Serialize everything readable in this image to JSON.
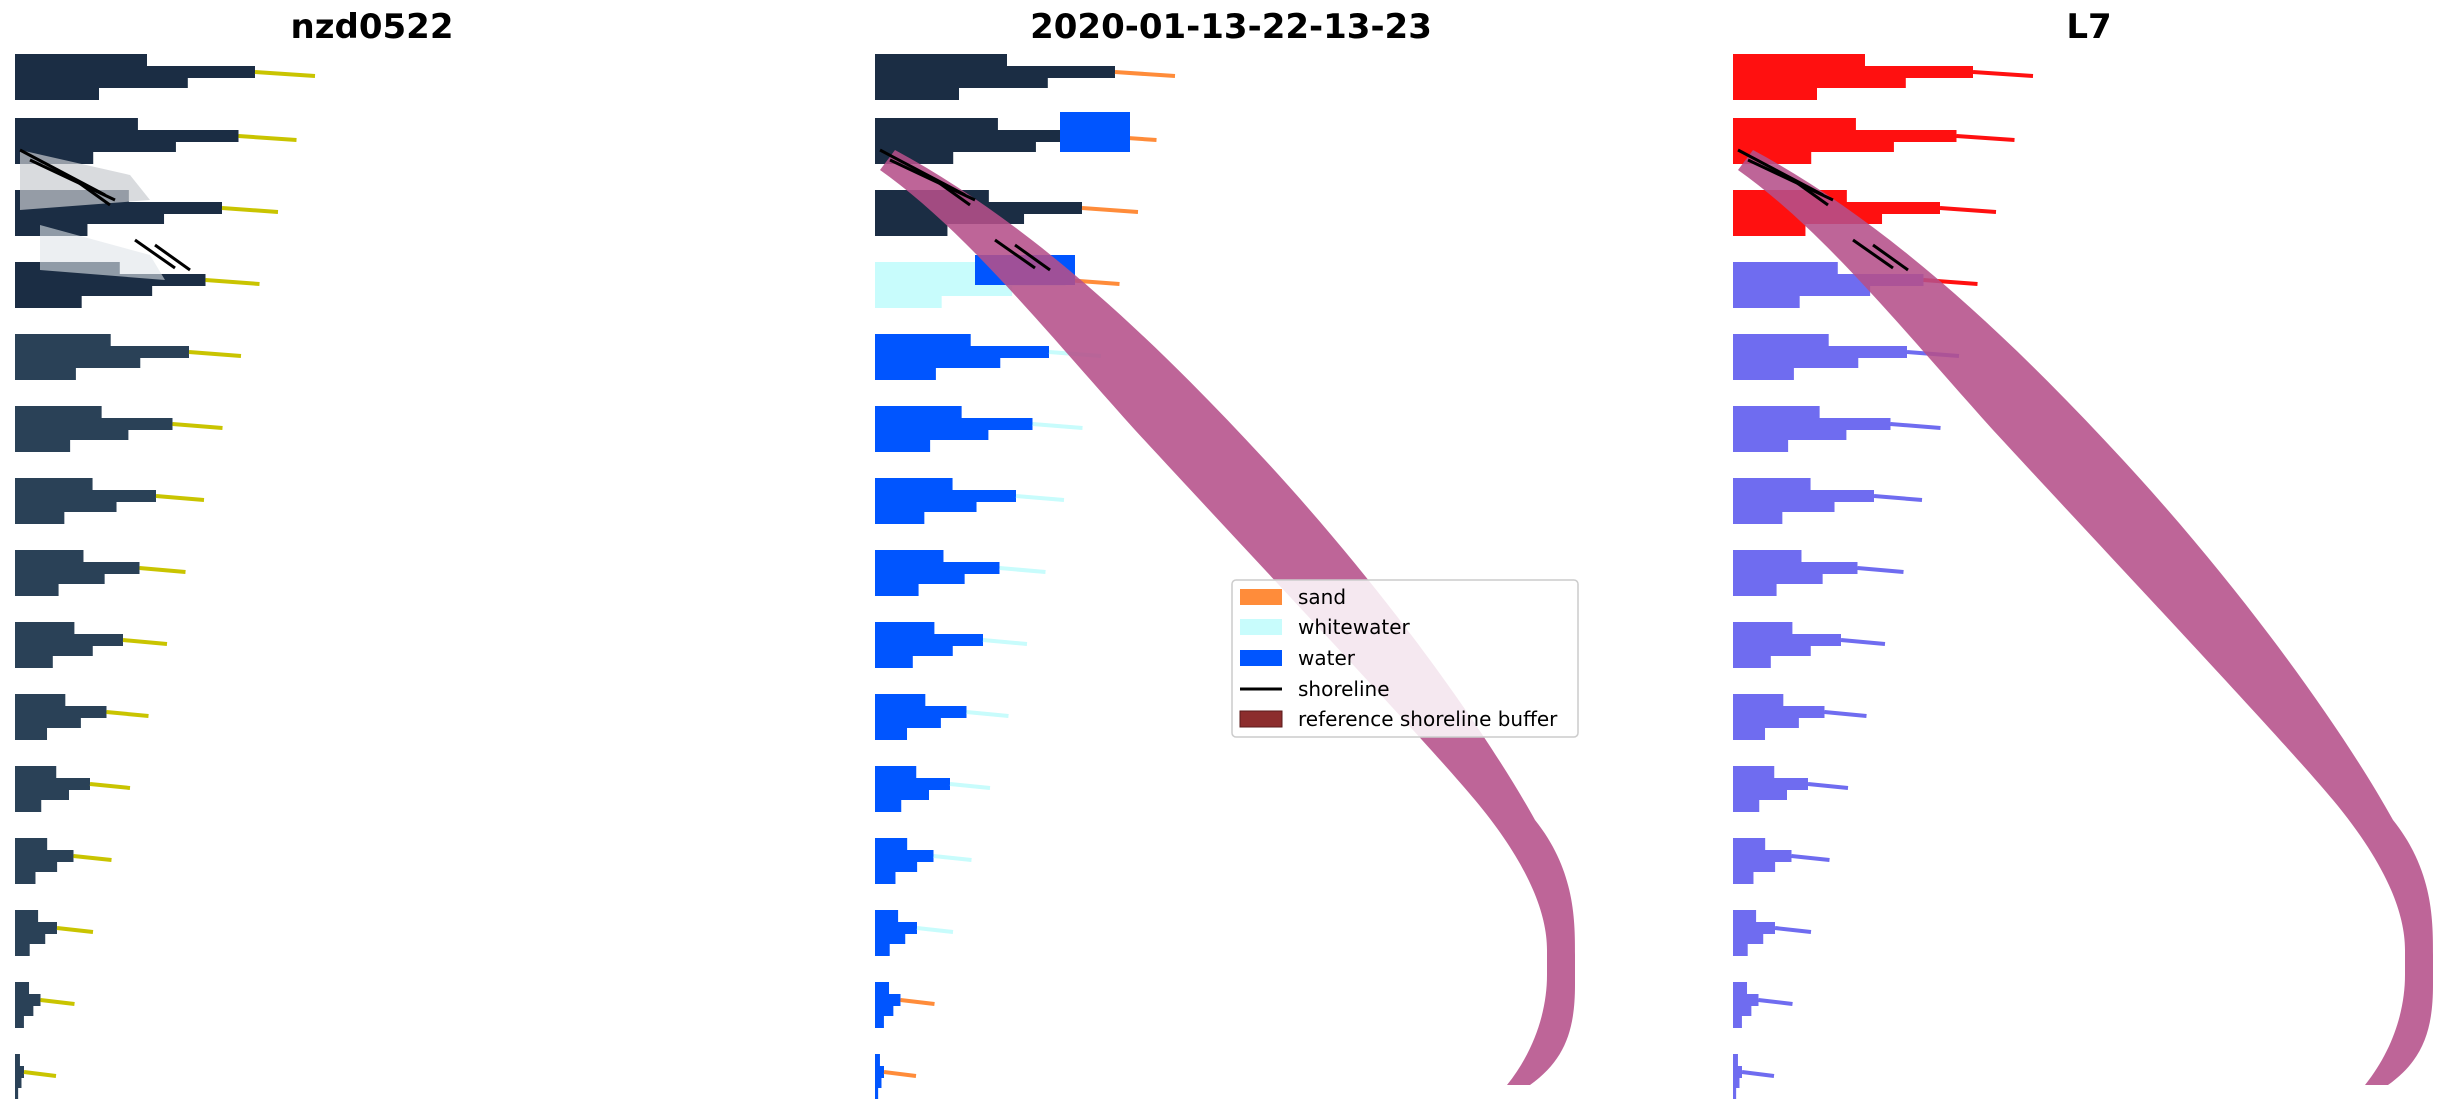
{
  "panels": [
    {
      "title": "nzd0522"
    },
    {
      "title": "2020-01-13-22-13-23"
    },
    {
      "title": "L7"
    }
  ],
  "legend": {
    "items": [
      {
        "label": "sand",
        "color": "#ff8c3a",
        "kind": "patch"
      },
      {
        "label": "whitewater",
        "color": "#c8fcfc",
        "kind": "patch"
      },
      {
        "label": "water",
        "color": "#0055ff",
        "kind": "patch"
      },
      {
        "label": "shoreline",
        "color": "#000000",
        "kind": "line"
      },
      {
        "label": "reference shoreline buffer",
        "color": "#8c2d2d",
        "kind": "patch"
      }
    ]
  },
  "colors": {
    "rgb_dark": "#1b2d44",
    "rgb_mid": "#2a4157",
    "rgb_tip": "#c9c400",
    "buffer": "#b5508a",
    "index_red": "#ff1010",
    "index_blue": "#6f6cf0"
  }
}
